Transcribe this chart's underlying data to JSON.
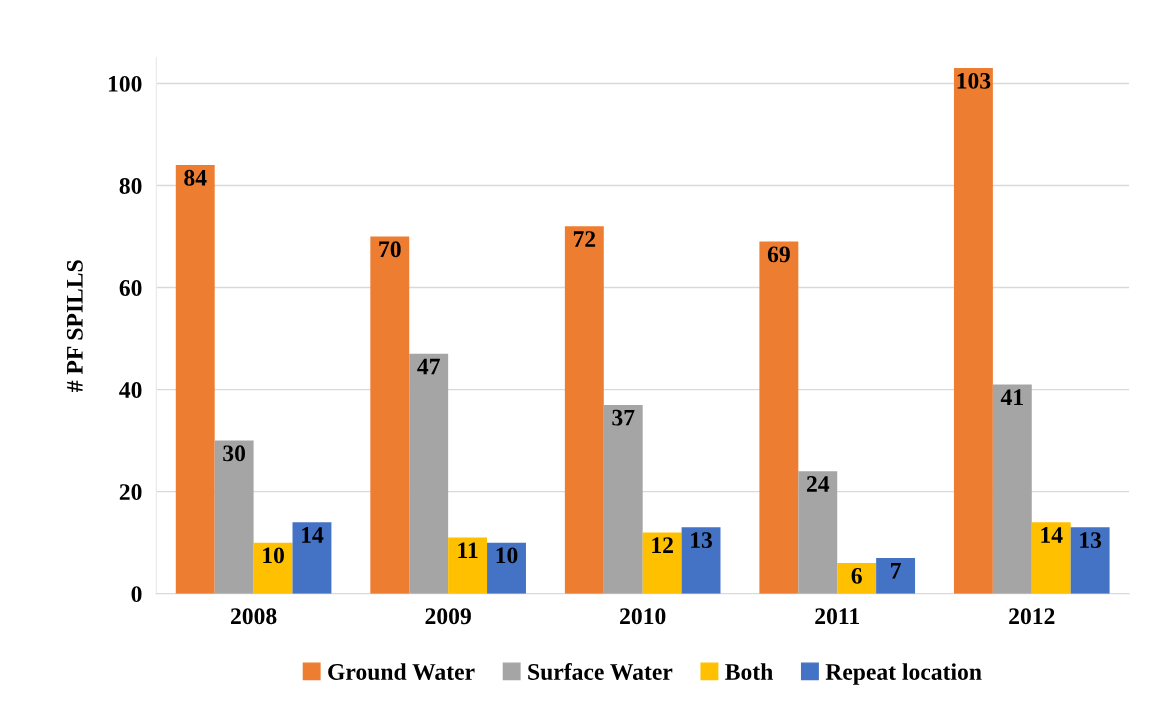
{
  "chart_data": {
    "type": "bar",
    "ylabel": "# PF SPILLS",
    "categories": [
      "2008",
      "2009",
      "2010",
      "2011",
      "2012"
    ],
    "series": [
      {
        "name": "Ground Water",
        "color": "#ed7d31",
        "values": [
          84,
          70,
          72,
          69,
          103
        ]
      },
      {
        "name": "Surface Water",
        "color": "#a5a5a5",
        "values": [
          30,
          47,
          37,
          24,
          41
        ]
      },
      {
        "name": "Both",
        "color": "#ffc000",
        "values": [
          10,
          11,
          12,
          6,
          14
        ]
      },
      {
        "name": "Repeat location",
        "color": "#4472c4",
        "values": [
          14,
          10,
          13,
          7,
          13
        ]
      }
    ],
    "ylim": [
      0,
      105
    ],
    "yticks": [
      0,
      20,
      40,
      60,
      80,
      100
    ],
    "grid": "y",
    "legend": "bottom",
    "data_labels": true
  }
}
